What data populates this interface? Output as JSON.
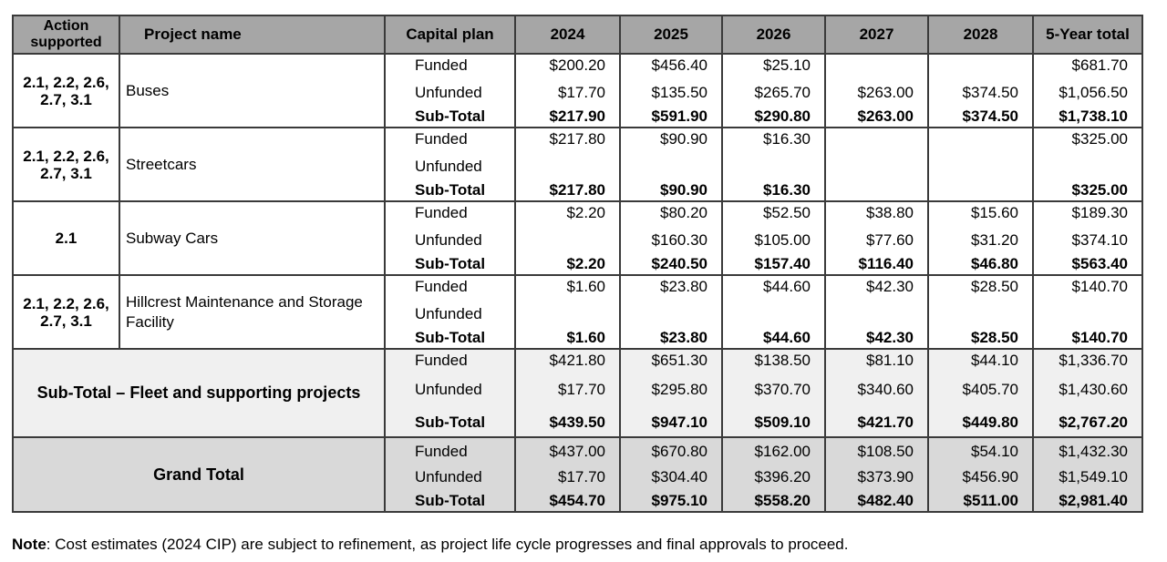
{
  "headers": {
    "action": "Action supported",
    "project": "Project name",
    "plan": "Capital plan",
    "y2024": "2024",
    "y2025": "2025",
    "y2026": "2026",
    "y2027": "2027",
    "y2028": "2028",
    "total": "5-Year total"
  },
  "plan_labels": {
    "funded": "Funded",
    "unfunded": "Unfunded",
    "subtotal": "Sub-Total"
  },
  "projects": [
    {
      "action": "2.1, 2.2, 2.6, 2.7, 3.1",
      "name": "Buses",
      "funded": [
        "$200.20",
        "$456.40",
        "$25.10",
        "",
        "",
        "$681.70"
      ],
      "unfunded": [
        "$17.70",
        "$135.50",
        "$265.70",
        "$263.00",
        "$374.50",
        "$1,056.50"
      ],
      "subtotal": [
        "$217.90",
        "$591.90",
        "$290.80",
        "$263.00",
        "$374.50",
        "$1,738.10"
      ]
    },
    {
      "action": "2.1, 2.2, 2.6, 2.7, 3.1",
      "name": "Streetcars",
      "funded": [
        "$217.80",
        "$90.90",
        "$16.30",
        "",
        "",
        "$325.00"
      ],
      "unfunded": [
        "",
        "",
        "",
        "",
        "",
        ""
      ],
      "subtotal": [
        "$217.80",
        "$90.90",
        "$16.30",
        "",
        "",
        "$325.00"
      ]
    },
    {
      "action": "2.1",
      "name": "Subway Cars",
      "funded": [
        "$2.20",
        "$80.20",
        "$52.50",
        "$38.80",
        "$15.60",
        "$189.30"
      ],
      "unfunded": [
        "",
        "$160.30",
        "$105.00",
        "$77.60",
        "$31.20",
        "$374.10"
      ],
      "subtotal": [
        "$2.20",
        "$240.50",
        "$157.40",
        "$116.40",
        "$46.80",
        "$563.40"
      ]
    },
    {
      "action": "2.1, 2.2, 2.6, 2.7, 3.1",
      "name": "Hillcrest Maintenance and Storage Facility",
      "funded": [
        "$1.60",
        "$23.80",
        "$44.60",
        "$42.30",
        "$28.50",
        "$140.70"
      ],
      "unfunded": [
        "",
        "",
        "",
        "",
        "",
        ""
      ],
      "subtotal": [
        "$1.60",
        "$23.80",
        "$44.60",
        "$42.30",
        "$28.50",
        "$140.70"
      ]
    }
  ],
  "fleet": {
    "label": "Sub-Total – Fleet and supporting projects",
    "funded": [
      "$421.80",
      "$651.30",
      "$138.50",
      "$81.10",
      "$44.10",
      "$1,336.70"
    ],
    "unfunded": [
      "$17.70",
      "$295.80",
      "$370.70",
      "$340.60",
      "$405.70",
      "$1,430.60"
    ],
    "subtotal": [
      "$439.50",
      "$947.10",
      "$509.10",
      "$421.70",
      "$449.80",
      "$2,767.20"
    ]
  },
  "grand": {
    "label": "Grand Total",
    "funded": [
      "$437.00",
      "$670.80",
      "$162.00",
      "$108.50",
      "$54.10",
      "$1,432.30"
    ],
    "unfunded": [
      "$17.70",
      "$304.40",
      "$396.20",
      "$373.90",
      "$456.90",
      "$1,549.10"
    ],
    "subtotal": [
      "$454.70",
      "$975.10",
      "$558.20",
      "$482.40",
      "$511.00",
      "$2,981.40"
    ]
  },
  "note": {
    "label": "Note",
    "text": ": Cost estimates (2024 CIP) are subject to refinement, as project life cycle progresses and final approvals to proceed."
  },
  "colors": {
    "header_bg": "#a6a6a6",
    "fleet_bg": "#f0f0f0",
    "grand_bg": "#d9d9d9"
  }
}
